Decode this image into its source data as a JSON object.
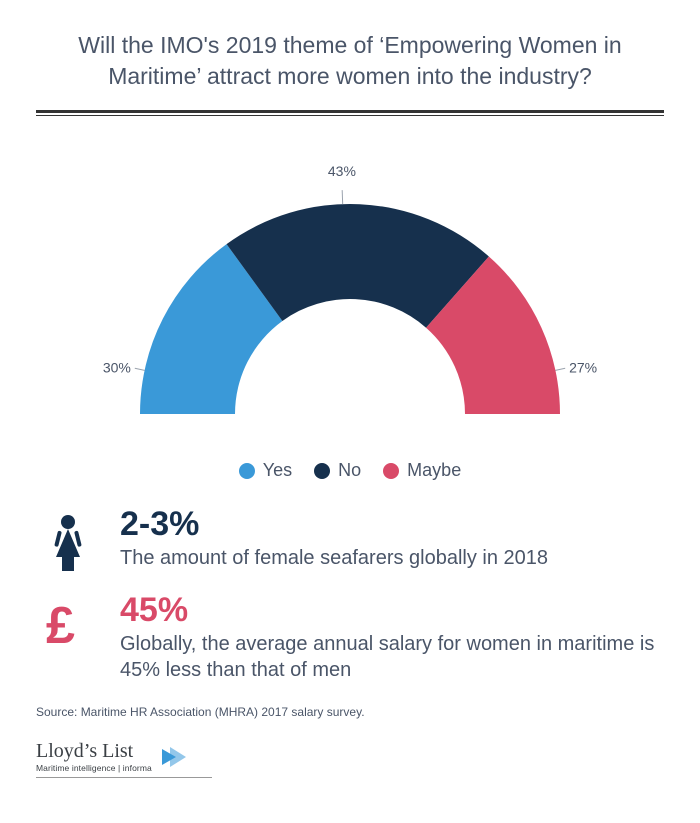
{
  "title": "Will the IMO's 2019 theme of ‘Empowering Women in Maritime’ attract more women into the industry?",
  "chart": {
    "type": "semi-donut",
    "background_color": "#ffffff",
    "outer_radius": 210,
    "inner_radius": 115,
    "segments": [
      {
        "key": "yes",
        "label": "Yes",
        "value": 30,
        "pct_label": "30%",
        "color": "#3a99d8"
      },
      {
        "key": "no",
        "label": "No",
        "value": 43,
        "pct_label": "43%",
        "color": "#16304d"
      },
      {
        "key": "maybe",
        "label": "Maybe",
        "value": 27,
        "pct_label": "27%",
        "color": "#d94a68"
      }
    ],
    "label_fontsize": 14,
    "label_color": "#4a5568",
    "legend_fontsize": 18,
    "leader_color": "#9aa2ad"
  },
  "stats": [
    {
      "icon": "woman-icon",
      "icon_color": "#16304d",
      "value": "2-3%",
      "value_color": "#16304d",
      "desc": "The amount of female seafarers globally in 2018"
    },
    {
      "icon": "pound-icon",
      "icon_color": "#d94a68",
      "value": "45%",
      "value_color": "#d94a68",
      "desc": "Globally, the average annual salary for women in maritime is 45% less than that of men"
    }
  ],
  "source": "Source: Maritime HR Association (MHRA) 2017 salary survey.",
  "brand": {
    "name": "Lloyd’s List",
    "sub": "Maritime intelligence | informa",
    "accent_color": "#3a99d8"
  }
}
